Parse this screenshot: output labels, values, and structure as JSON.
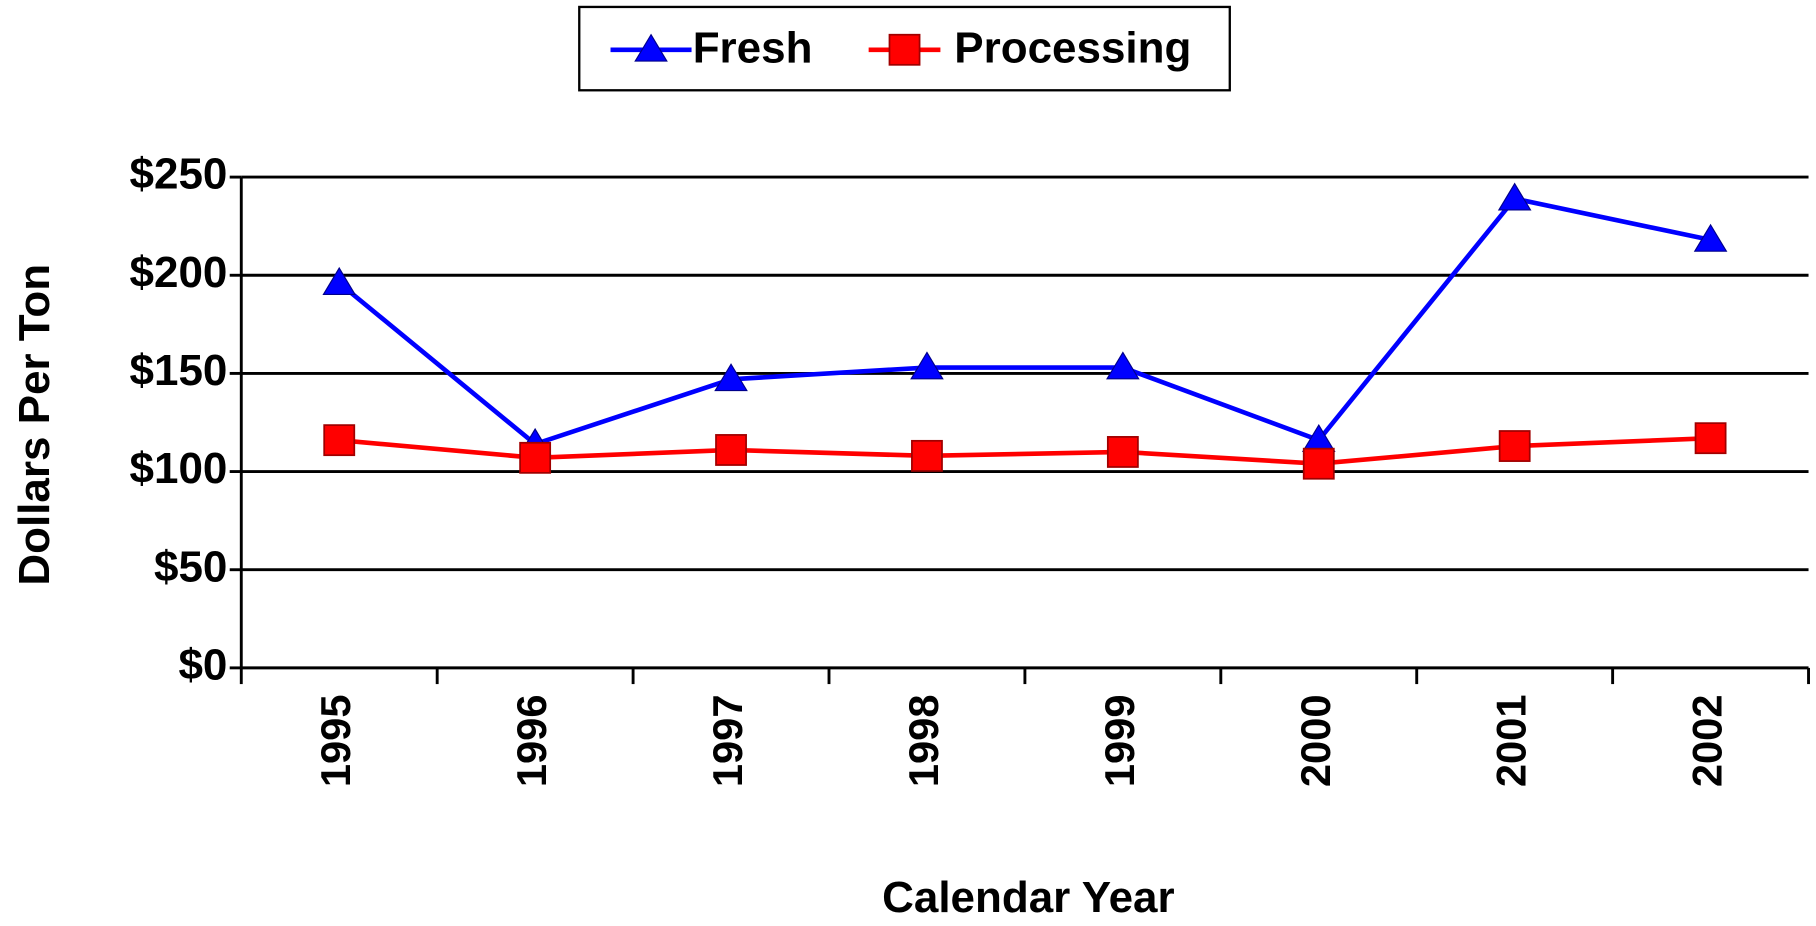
{
  "chart_data": {
    "type": "line",
    "x_label": "Calendar Year",
    "y_label": "Dollars Per Ton",
    "categories": [
      "1995",
      "1996",
      "1997",
      "1998",
      "1999",
      "2000",
      "2001",
      "2002"
    ],
    "series": [
      {
        "name": "Fresh",
        "color": "#0000ff",
        "marker": "triangle",
        "values": [
          196,
          114,
          147,
          153,
          153,
          116,
          239,
          218
        ]
      },
      {
        "name": "Processing",
        "color": "#ff0000",
        "marker": "square",
        "values": [
          116,
          107,
          111,
          108,
          110,
          104,
          113,
          117
        ]
      }
    ],
    "ylim": [
      0,
      250
    ],
    "yticks": [
      {
        "value": 0,
        "label": "$0"
      },
      {
        "value": 50,
        "label": "$50"
      },
      {
        "value": 100,
        "label": "$100"
      },
      {
        "value": 150,
        "label": "$150"
      },
      {
        "value": 200,
        "label": "$200"
      },
      {
        "value": 250,
        "label": "$250"
      }
    ],
    "grid": true,
    "legend": "top"
  }
}
